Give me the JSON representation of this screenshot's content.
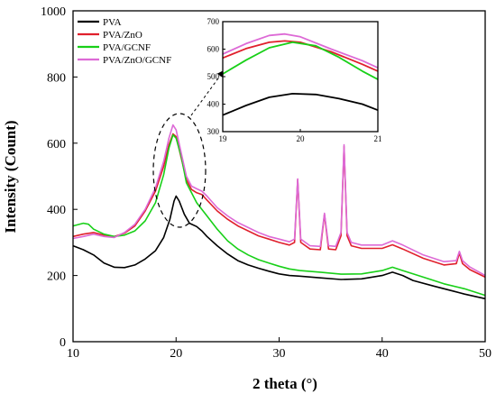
{
  "chart_data": {
    "type": "line",
    "xlabel": "2 theta (°)",
    "ylabel": "Intensity (Count)",
    "xlim": [
      10,
      50
    ],
    "ylim": [
      0,
      1000
    ],
    "x_ticks": [
      "10",
      "20",
      "30",
      "40",
      "50"
    ],
    "y_ticks": [
      "0",
      "200",
      "400",
      "600",
      "800",
      "1000"
    ],
    "legend_position": "top-left",
    "series": [
      {
        "name": "PVA",
        "color": "#000000",
        "points": [
          [
            10,
            290
          ],
          [
            11,
            278
          ],
          [
            12,
            262
          ],
          [
            13,
            238
          ],
          [
            14,
            225
          ],
          [
            15,
            224
          ],
          [
            16,
            232
          ],
          [
            17,
            250
          ],
          [
            18,
            275
          ],
          [
            18.8,
            315
          ],
          [
            19.4,
            370
          ],
          [
            19.8,
            425
          ],
          [
            20,
            440
          ],
          [
            20.3,
            425
          ],
          [
            20.8,
            385
          ],
          [
            21.3,
            358
          ],
          [
            22,
            348
          ],
          [
            22.5,
            335
          ],
          [
            23,
            318
          ],
          [
            24,
            290
          ],
          [
            25,
            265
          ],
          [
            26,
            245
          ],
          [
            27,
            232
          ],
          [
            28,
            222
          ],
          [
            29,
            213
          ],
          [
            30,
            205
          ],
          [
            31,
            200
          ],
          [
            32,
            198
          ],
          [
            34,
            193
          ],
          [
            36,
            188
          ],
          [
            38,
            190
          ],
          [
            40,
            200
          ],
          [
            41,
            210
          ],
          [
            42,
            200
          ],
          [
            43,
            185
          ],
          [
            45,
            168
          ],
          [
            47,
            152
          ],
          [
            48,
            144
          ],
          [
            50,
            130
          ]
        ]
      },
      {
        "name": "PVA/ZnO",
        "color": "#e0202c",
        "points": [
          [
            10,
            318
          ],
          [
            11,
            325
          ],
          [
            12,
            330
          ],
          [
            13,
            322
          ],
          [
            14,
            318
          ],
          [
            15,
            328
          ],
          [
            16,
            350
          ],
          [
            17,
            395
          ],
          [
            18,
            455
          ],
          [
            18.8,
            530
          ],
          [
            19.3,
            595
          ],
          [
            19.7,
            628
          ],
          [
            20,
            620
          ],
          [
            20.5,
            555
          ],
          [
            21,
            490
          ],
          [
            21.5,
            460
          ],
          [
            22,
            450
          ],
          [
            22.5,
            445
          ],
          [
            23,
            428
          ],
          [
            24,
            395
          ],
          [
            25,
            370
          ],
          [
            26,
            350
          ],
          [
            27,
            335
          ],
          [
            28,
            320
          ],
          [
            29,
            310
          ],
          [
            30,
            300
          ],
          [
            31,
            292
          ],
          [
            31.5,
            300
          ],
          [
            31.8,
            490
          ],
          [
            32.1,
            300
          ],
          [
            33,
            280
          ],
          [
            34,
            278
          ],
          [
            34.4,
            385
          ],
          [
            34.8,
            280
          ],
          [
            35.5,
            278
          ],
          [
            36,
            320
          ],
          [
            36.3,
            590
          ],
          [
            36.6,
            320
          ],
          [
            37,
            290
          ],
          [
            38,
            282
          ],
          [
            40,
            282
          ],
          [
            41,
            293
          ],
          [
            42,
            280
          ],
          [
            44,
            252
          ],
          [
            46,
            232
          ],
          [
            47.2,
            236
          ],
          [
            47.5,
            268
          ],
          [
            47.8,
            236
          ],
          [
            48.5,
            218
          ],
          [
            50,
            195
          ]
        ]
      },
      {
        "name": "PVA/GCNF",
        "color": "#18d018",
        "points": [
          [
            10,
            350
          ],
          [
            11,
            358
          ],
          [
            11.5,
            355
          ],
          [
            12,
            340
          ],
          [
            13,
            325
          ],
          [
            14,
            318
          ],
          [
            15,
            322
          ],
          [
            16,
            335
          ],
          [
            17,
            365
          ],
          [
            18,
            420
          ],
          [
            18.8,
            505
          ],
          [
            19.3,
            585
          ],
          [
            19.7,
            625
          ],
          [
            20,
            615
          ],
          [
            20.5,
            560
          ],
          [
            21,
            480
          ],
          [
            22,
            420
          ],
          [
            23,
            380
          ],
          [
            24,
            340
          ],
          [
            25,
            305
          ],
          [
            26,
            280
          ],
          [
            27,
            262
          ],
          [
            28,
            248
          ],
          [
            29,
            238
          ],
          [
            30,
            228
          ],
          [
            31,
            220
          ],
          [
            32,
            215
          ],
          [
            34,
            210
          ],
          [
            36,
            204
          ],
          [
            38,
            205
          ],
          [
            40,
            215
          ],
          [
            41,
            225
          ],
          [
            42,
            215
          ],
          [
            44,
            195
          ],
          [
            46,
            175
          ],
          [
            48,
            160
          ],
          [
            50,
            140
          ]
        ]
      },
      {
        "name": "PVA/ZnO/GCNF",
        "color": "#dd6ad6",
        "points": [
          [
            10,
            312
          ],
          [
            11,
            318
          ],
          [
            12,
            325
          ],
          [
            13,
            318
          ],
          [
            14,
            315
          ],
          [
            15,
            330
          ],
          [
            16,
            355
          ],
          [
            17,
            400
          ],
          [
            18,
            465
          ],
          [
            18.8,
            545
          ],
          [
            19.3,
            615
          ],
          [
            19.7,
            655
          ],
          [
            20,
            640
          ],
          [
            20.5,
            570
          ],
          [
            21,
            500
          ],
          [
            21.5,
            470
          ],
          [
            22,
            462
          ],
          [
            22.5,
            455
          ],
          [
            23,
            440
          ],
          [
            24,
            405
          ],
          [
            25,
            380
          ],
          [
            26,
            360
          ],
          [
            27,
            345
          ],
          [
            28,
            330
          ],
          [
            29,
            318
          ],
          [
            30,
            310
          ],
          [
            31,
            302
          ],
          [
            31.5,
            310
          ],
          [
            31.8,
            492
          ],
          [
            32.1,
            310
          ],
          [
            33,
            290
          ],
          [
            34,
            288
          ],
          [
            34.4,
            388
          ],
          [
            34.8,
            290
          ],
          [
            35.5,
            288
          ],
          [
            36,
            330
          ],
          [
            36.3,
            595
          ],
          [
            36.6,
            330
          ],
          [
            37,
            300
          ],
          [
            38,
            292
          ],
          [
            40,
            292
          ],
          [
            41,
            305
          ],
          [
            42,
            292
          ],
          [
            44,
            262
          ],
          [
            46,
            242
          ],
          [
            47.2,
            245
          ],
          [
            47.5,
            273
          ],
          [
            47.8,
            245
          ],
          [
            48.5,
            226
          ],
          [
            50,
            200
          ]
        ]
      }
    ],
    "inset": {
      "xlim": [
        19,
        21
      ],
      "ylim": [
        300,
        700
      ],
      "x_ticks": [
        "19",
        "20",
        "21"
      ],
      "y_ticks": [
        "300",
        "400",
        "500",
        "600",
        "700"
      ],
      "series": [
        {
          "name": "PVA",
          "color": "#000000",
          "points": [
            [
              19,
              360
            ],
            [
              19.3,
              395
            ],
            [
              19.6,
              425
            ],
            [
              19.9,
              438
            ],
            [
              20.2,
              435
            ],
            [
              20.5,
              420
            ],
            [
              20.8,
              400
            ],
            [
              21,
              378
            ]
          ]
        },
        {
          "name": "PVA/ZnO",
          "color": "#e0202c",
          "points": [
            [
              19,
              568
            ],
            [
              19.3,
              602
            ],
            [
              19.6,
              625
            ],
            [
              19.8,
              630
            ],
            [
              20,
              625
            ],
            [
              20.4,
              590
            ],
            [
              20.8,
              545
            ],
            [
              21,
              520
            ]
          ]
        },
        {
          "name": "PVA/GCNF",
          "color": "#18d018",
          "points": [
            [
              19,
              510
            ],
            [
              19.3,
              560
            ],
            [
              19.6,
              605
            ],
            [
              19.9,
              625
            ],
            [
              20.2,
              612
            ],
            [
              20.5,
              570
            ],
            [
              20.8,
              520
            ],
            [
              21,
              490
            ]
          ]
        },
        {
          "name": "PVA/ZnO/GCNF",
          "color": "#dd6ad6",
          "points": [
            [
              19,
              582
            ],
            [
              19.3,
              620
            ],
            [
              19.6,
              650
            ],
            [
              19.8,
              655
            ],
            [
              20,
              645
            ],
            [
              20.4,
              600
            ],
            [
              20.8,
              558
            ],
            [
              21,
              532
            ]
          ]
        }
      ]
    }
  }
}
